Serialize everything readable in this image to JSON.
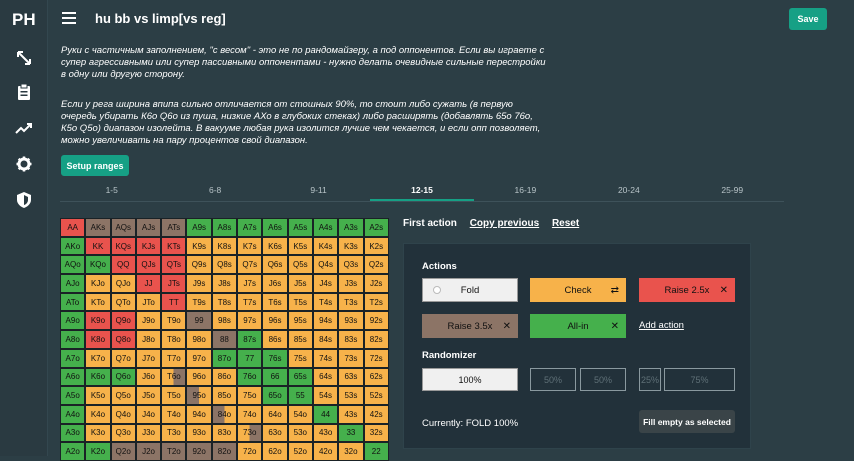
{
  "app": {
    "logo": "PH",
    "title": "hu bb vs limp[vs reg]",
    "save_label": "Save"
  },
  "notes": [
    "Руки с частичным заполнением, \"с весом\" - это не по рандомайзеру, а под оппонентов. Если вы играете с супер агрессивными или супер пассивными оппонентами - нужно делать очевидные сильные перестройки в одну или другую сторону.",
    "Если у рега ширина впипа сильно отличается от стошных 90%, то стоит либо сужать (в первую очередь убирать К6о Q6о из пуша, низкие АХо в глубоких стеках) либо расширять (добавлять 65о 76о, К5о Q5о) диапазон изолейта. В вакууме любая рука изолится лучше чем чекается, и если опп позволяет, можно увеличивать на пару процентов свой диапазон."
  ],
  "setup_label": "Setup ranges",
  "tabs": [
    "1-5",
    "6-8",
    "9-11",
    "12-15",
    "16-19",
    "20-24",
    "25-99"
  ],
  "active_tab": 3,
  "colors": {
    "fold": "#f0f0f0",
    "check": "#f7b24a",
    "raise25": "#e9534d",
    "raise35": "#8c7466",
    "allin": "#45b04c",
    "accent": "#16a085"
  },
  "grid_rows": [
    [
      "AA:r",
      "AKs:b",
      "AQs:b",
      "AJs:b",
      "ATs:b",
      "A9s:g",
      "A8s:g",
      "A7s:g",
      "A6s:g",
      "A5s:g",
      "A4s:g",
      "A3s:g",
      "A2s:g"
    ],
    [
      "AKo:g",
      "KK:r",
      "KQs:r",
      "KJs:r",
      "KTs:r",
      "K9s:o",
      "K8s:o",
      "K7s:o",
      "K6s:o",
      "K5s:o",
      "K4s:o",
      "K3s:o",
      "K2s:o"
    ],
    [
      "AQo:g",
      "KQo:g",
      "QQ:r",
      "QJs:r",
      "QTs:r",
      "Q9s:o",
      "Q8s:o",
      "Q7s:o",
      "Q6s:o",
      "Q5s:o",
      "Q4s:o",
      "Q3s:o",
      "Q2s:o"
    ],
    [
      "AJo:g",
      "KJo:o",
      "QJo:o",
      "JJ:r",
      "JTs:r",
      "J9s:o",
      "J8s:o",
      "J7s:o",
      "J6s:o",
      "J5s:o",
      "J4s:o",
      "J3s:o",
      "J2s:o"
    ],
    [
      "ATo:g",
      "KTo:o",
      "QTo:o",
      "JTo:o",
      "TT:r",
      "T9s:o",
      "T8s:o",
      "T7s:o",
      "T6s:o",
      "T5s:o",
      "T4s:o",
      "T3s:o",
      "T2s:o"
    ],
    [
      "A9o:g",
      "K9o:r",
      "Q9o:r",
      "J9o:o",
      "T9o:o",
      "99:b",
      "98s:o",
      "97s:o",
      "96s:o",
      "95s:o",
      "94s:o",
      "93s:o",
      "92s:o"
    ],
    [
      "A8o:g",
      "K8o:r",
      "Q8o:r",
      "J8o:o",
      "T8o:o",
      "98o:o",
      "88:b",
      "87s:g",
      "86s:o",
      "85s:o",
      "84s:o",
      "83s:o",
      "82s:o"
    ],
    [
      "A7o:g",
      "K7o:o",
      "Q7o:o",
      "J7o:o",
      "T7o:o",
      "97o:o",
      "87o:g",
      "77:g",
      "76s:g",
      "75s:o",
      "74s:o",
      "73s:o",
      "72s:o"
    ],
    [
      "A6o:g",
      "K6o:g",
      "Q6o:g",
      "J6o:o",
      "T6o:ob",
      "96o:o",
      "86o:o",
      "76o:g",
      "66:g",
      "65s:g",
      "64s:o",
      "63s:o",
      "62s:o"
    ],
    [
      "A5o:g",
      "K5o:o",
      "Q5o:o",
      "J5o:o",
      "T5o:o",
      "95o:bo",
      "85o:o",
      "75o:o",
      "65o:g",
      "55:g",
      "54s:o",
      "53s:o",
      "52s:o"
    ],
    [
      "A4o:g",
      "K4o:o",
      "Q4o:o",
      "J4o:o",
      "T4o:o",
      "94o:o",
      "84o:bo",
      "74o:o",
      "64o:o",
      "54o:o",
      "44:g",
      "43s:o",
      "42s:o"
    ],
    [
      "A3o:g",
      "K3o:o",
      "Q3o:o",
      "J3o:o",
      "T3o:o",
      "93o:o",
      "83o:o",
      "73o:ob",
      "63o:o",
      "53o:o",
      "43o:o",
      "33:g",
      "32s:o"
    ],
    [
      "A2o:g",
      "K2o:g",
      "Q2o:b",
      "J2o:b",
      "T2o:b",
      "92o:b",
      "82o:b",
      "72o:o",
      "62o:o",
      "52o:o",
      "42o:o",
      "32o:o",
      "22:g"
    ]
  ],
  "first_action": {
    "label": "First action",
    "copy_label": "Copy previous",
    "reset_label": "Reset"
  },
  "actions": {
    "title": "Actions",
    "fold": "Fold",
    "check": "Check",
    "raise25": "Raise  2.5x",
    "raise35": "Raise  3.5x",
    "allin": "All-in",
    "add": "Add action"
  },
  "randomizer": {
    "title": "Randomizer",
    "options": [
      "100%",
      "50%",
      "50%",
      "25%",
      "75%"
    ]
  },
  "status": "Currently: FOLD 100%",
  "fill_label": "Fill empty as selected"
}
